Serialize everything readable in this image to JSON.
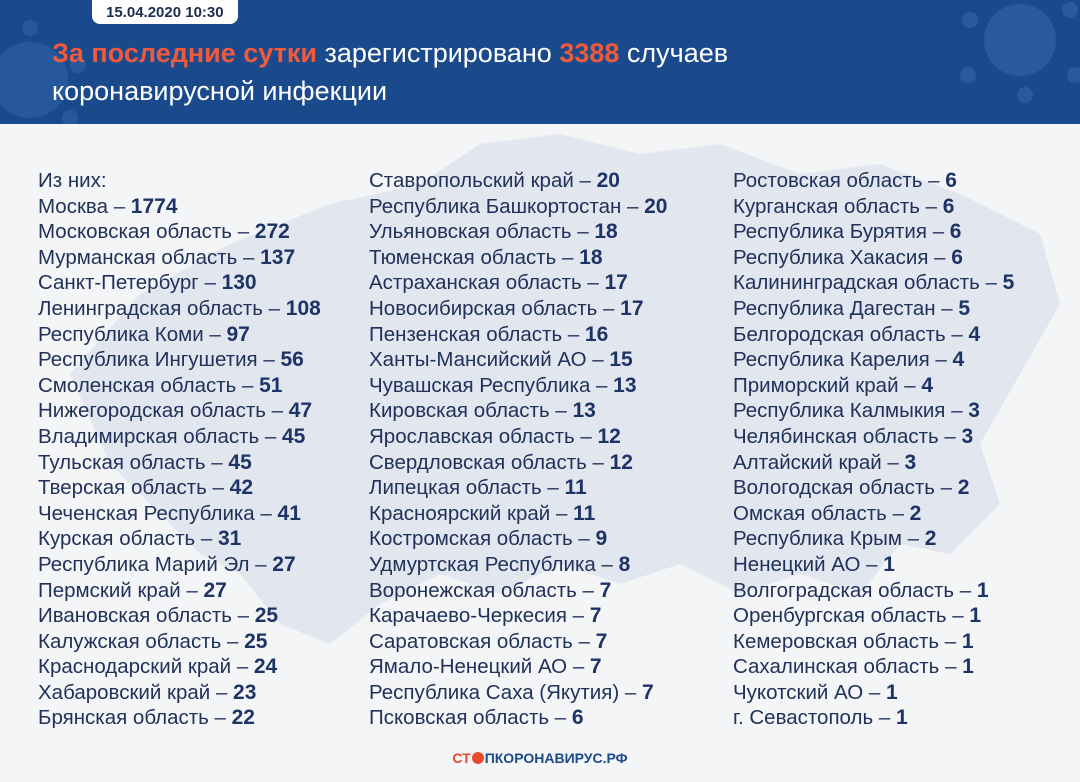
{
  "header": {
    "date": "15.04.2020 10:30",
    "title_highlight1": "За последние сутки",
    "title_mid": " зарегистрировано ",
    "title_number": "3388",
    "title_end": " случаев",
    "title_line2": "коронавирусной инфекции"
  },
  "colors": {
    "header_bg": "#1b4a8c",
    "accent": "#f05a3c",
    "text": "#20315a"
  },
  "intro": "Из них:",
  "columns": [
    [
      {
        "name": "Москва",
        "value": "1774"
      },
      {
        "name": "Московская область",
        "value": "272"
      },
      {
        "name": "Мурманская область",
        "value": "137"
      },
      {
        "name": "Санкт-Петербург",
        "value": "130"
      },
      {
        "name": "Ленинградская область",
        "value": "108"
      },
      {
        "name": "Республика Коми",
        "value": "97"
      },
      {
        "name": "Республика Ингушетия",
        "value": "56"
      },
      {
        "name": "Смоленская область",
        "value": "51"
      },
      {
        "name": "Нижегородская область",
        "value": "47"
      },
      {
        "name": "Владимирская область",
        "value": "45"
      },
      {
        "name": "Тульская область",
        "value": "45"
      },
      {
        "name": "Тверская область",
        "value": "42"
      },
      {
        "name": "Чеченская Республика",
        "value": "41"
      },
      {
        "name": "Курская область",
        "value": "31"
      },
      {
        "name": "Республика Марий Эл",
        "value": "27"
      },
      {
        "name": "Пермский край",
        "value": "27"
      },
      {
        "name": "Ивановская область",
        "value": "25"
      },
      {
        "name": "Калужская область",
        "value": "25"
      },
      {
        "name": "Краснодарский край",
        "value": "24"
      },
      {
        "name": "Хабаровский край",
        "value": "23"
      },
      {
        "name": "Брянская область",
        "value": "22"
      }
    ],
    [
      {
        "name": "Ставропольский край",
        "value": "20"
      },
      {
        "name": "Республика Башкортостан",
        "value": "20"
      },
      {
        "name": "Ульяновская область",
        "value": "18"
      },
      {
        "name": "Тюменская область",
        "value": "18"
      },
      {
        "name": "Астраханская область",
        "value": "17"
      },
      {
        "name": "Новосибирская область",
        "value": "17"
      },
      {
        "name": "Пензенская область",
        "value": "16"
      },
      {
        "name": "Ханты-Мансийский АО",
        "value": "15"
      },
      {
        "name": "Чувашская Республика",
        "value": "13"
      },
      {
        "name": "Кировская область",
        "value": "13"
      },
      {
        "name": "Ярославская область",
        "value": "12"
      },
      {
        "name": "Свердловская область",
        "value": "12"
      },
      {
        "name": "Липецкая область",
        "value": "11"
      },
      {
        "name": "Красноярский край",
        "value": "11"
      },
      {
        "name": "Костромская область",
        "value": "9"
      },
      {
        "name": "Удмуртская Республика",
        "value": "8"
      },
      {
        "name": "Воронежская область",
        "value": "7"
      },
      {
        "name": "Карачаево-Черкесия",
        "value": "7"
      },
      {
        "name": "Саратовская область",
        "value": "7"
      },
      {
        "name": "Ямало-Ненецкий АО",
        "value": "7"
      },
      {
        "name": "Республика Саха (Якутия)",
        "value": "7"
      },
      {
        "name": "Псковская область",
        "value": "6"
      }
    ],
    [
      {
        "name": "Ростовская область",
        "value": "6"
      },
      {
        "name": "Курганская область",
        "value": "6"
      },
      {
        "name": "Республика Бурятия",
        "value": "6"
      },
      {
        "name": "Республика Хакасия",
        "value": "6"
      },
      {
        "name": "Калининградская область",
        "value": "5"
      },
      {
        "name": "Республика Дагестан",
        "value": "5"
      },
      {
        "name": "Белгородская область",
        "value": "4"
      },
      {
        "name": "Республика Карелия",
        "value": "4"
      },
      {
        "name": "Приморский край",
        "value": "4"
      },
      {
        "name": "Республика Калмыкия",
        "value": "3"
      },
      {
        "name": "Челябинская область",
        "value": "3"
      },
      {
        "name": "Алтайский край",
        "value": "3"
      },
      {
        "name": "Вологодская область",
        "value": "2"
      },
      {
        "name": "Омская область",
        "value": "2"
      },
      {
        "name": "Республика Крым",
        "value": "2"
      },
      {
        "name": "Ненецкий АО",
        "value": "1"
      },
      {
        "name": "Волгоградская область",
        "value": "1"
      },
      {
        "name": "Оренбургская область",
        "value": "1"
      },
      {
        "name": "Кемеровская область",
        "value": "1"
      },
      {
        "name": "Сахалинская область",
        "value": "1"
      },
      {
        "name": "Чукотский АО",
        "value": "1"
      },
      {
        "name": "г. Севастополь",
        "value": "1"
      }
    ]
  ],
  "footer": {
    "part1": "СТ",
    "part2": "ПКОРОНАВИРУС.РФ"
  }
}
